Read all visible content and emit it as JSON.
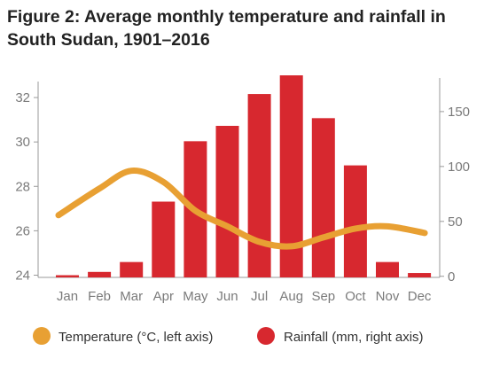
{
  "title_line1": "Figure 2: Average monthly temperature and rainfall in",
  "title_line2": "South Sudan, 1901–2016",
  "chart_data": {
    "type": "bar",
    "categories": [
      "Jan",
      "Feb",
      "Mar",
      "Apr",
      "May",
      "Jun",
      "Jul",
      "Aug",
      "Sep",
      "Oct",
      "Nov",
      "Dec"
    ],
    "series": [
      {
        "name": "Rainfall (mm, right axis)",
        "type": "bar",
        "axis": "right",
        "color": "#d7282f",
        "values": [
          1,
          4,
          13,
          68,
          123,
          137,
          166,
          183,
          144,
          101,
          13,
          3
        ]
      },
      {
        "name": "Temperature (°C, left axis)",
        "type": "line",
        "axis": "left",
        "color": "#e8a033",
        "values": [
          26.7,
          27.9,
          28.7,
          28.2,
          26.9,
          26.2,
          25.5,
          25.3,
          25.7,
          26.1,
          26.2,
          25.9
        ]
      }
    ],
    "left_axis": {
      "ylim": [
        23.9,
        33
      ],
      "ticks": [
        24,
        26,
        28,
        30,
        32
      ]
    },
    "right_axis": {
      "ylim": [
        -1,
        183
      ],
      "ticks": [
        0,
        50,
        100,
        150
      ]
    },
    "legend_position": "bottom",
    "grid": false
  }
}
